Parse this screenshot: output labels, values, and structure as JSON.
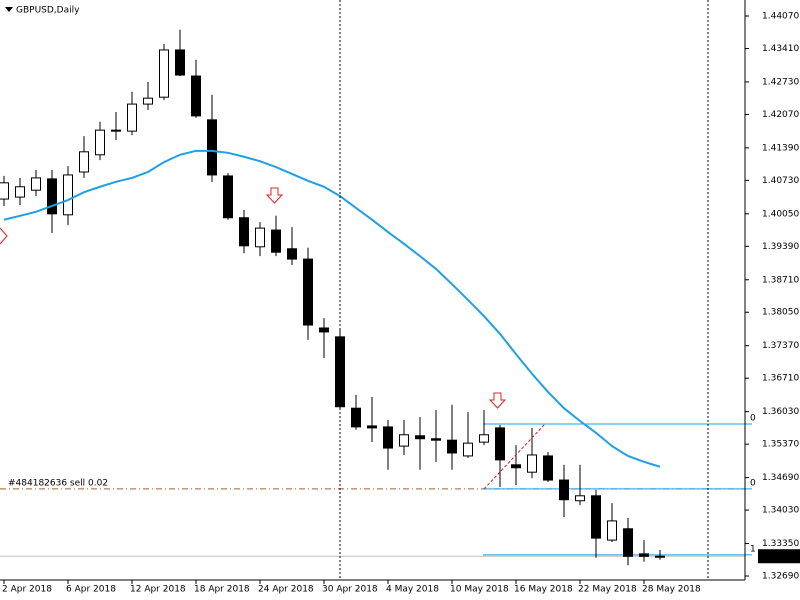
{
  "chart_data": {
    "type": "candlestick",
    "title": "GBPUSD,Daily",
    "categories": [
      "2 Apr 2018",
      null,
      null,
      null,
      "6 Apr 2018",
      null,
      null,
      null,
      "12 Apr 2018",
      null,
      null,
      null,
      "18 Apr 2018",
      null,
      null,
      null,
      "24 Apr 2018",
      null,
      null,
      null,
      "30 Apr 2018",
      null,
      null,
      null,
      "4 May 2018",
      null,
      null,
      null,
      "10 May 2018",
      null,
      null,
      null,
      "16 May 2018",
      null,
      null,
      null,
      "22 May 2018",
      null,
      null,
      null,
      "28 May 2018",
      null
    ],
    "open": [
      1.4035,
      1.4039,
      1.4053,
      1.4076,
      1.4003,
      1.409,
      1.4125,
      1.4173,
      1.4173,
      1.4228,
      1.4242,
      1.4338,
      1.4285,
      1.4196,
      1.4082,
      1.3997,
      1.3938,
      1.3972,
      1.3934,
      1.3913,
      1.3773,
      1.3755,
      1.361,
      1.3574,
      1.3572,
      1.3533,
      1.3554,
      1.3548,
      1.3545,
      1.3513,
      1.3541,
      1.357,
      1.3495,
      1.348,
      1.3513,
      1.3464,
      1.3422,
      1.3432,
      1.3342,
      1.3365,
      1.3314,
      1.3308
    ],
    "high": [
      1.4082,
      1.4078,
      1.4094,
      1.4094,
      1.4102,
      1.4163,
      1.4192,
      1.4212,
      1.4253,
      1.4273,
      1.435,
      1.4379,
      1.4318,
      1.4247,
      1.4088,
      1.4013,
      1.3988,
      1.4001,
      1.3978,
      1.3936,
      1.3793,
      1.3769,
      1.3637,
      1.3633,
      1.3586,
      1.3586,
      1.3592,
      1.3606,
      1.3617,
      1.3602,
      1.3606,
      1.3576,
      1.3535,
      1.357,
      1.3521,
      1.3495,
      1.3495,
      1.3444,
      1.3417,
      1.3387,
      1.3342,
      1.3322
    ],
    "low": [
      1.4021,
      1.4023,
      1.4041,
      1.3966,
      1.3982,
      1.4078,
      1.4114,
      1.4155,
      1.4165,
      1.4216,
      1.4236,
      1.4285,
      1.42,
      1.407,
      1.3993,
      1.3925,
      1.3919,
      1.3919,
      1.3901,
      1.3749,
      1.3712,
      1.3608,
      1.3566,
      1.3541,
      1.3485,
      1.3515,
      1.3485,
      1.3501,
      1.3485,
      1.3509,
      1.3535,
      1.345,
      1.3454,
      1.3468,
      1.346,
      1.3389,
      1.3413,
      1.3306,
      1.3338,
      1.3291,
      1.3298,
      1.3302
    ],
    "close": [
      1.4068,
      1.406,
      1.4078,
      1.4005,
      1.4084,
      1.4131,
      1.4175,
      1.4175,
      1.4228,
      1.424,
      1.4338,
      1.4287,
      1.4204,
      1.4084,
      1.3997,
      1.394,
      1.3976,
      1.3927,
      1.3913,
      1.3779,
      1.3765,
      1.3613,
      1.3572,
      1.357,
      1.3529,
      1.3556,
      1.3548,
      1.3545,
      1.3519,
      1.3539,
      1.3556,
      1.3505,
      1.3489,
      1.3515,
      1.3464,
      1.3424,
      1.3432,
      1.3346,
      1.3381,
      1.3309,
      1.3309,
      1.33092
    ],
    "up_color": "#ffffff",
    "down_color": "#000000",
    "ma": {
      "color": "#1ea0e6",
      "values": [
        1.3993,
        1.4001,
        1.4009,
        1.4021,
        1.4033,
        1.4049,
        1.406,
        1.407,
        1.4078,
        1.409,
        1.411,
        1.4125,
        1.4133,
        1.4133,
        1.4129,
        1.4121,
        1.4112,
        1.41,
        1.4086,
        1.4072,
        1.406,
        1.4041,
        1.4017,
        1.3993,
        1.3968,
        1.3944,
        1.3919,
        1.3893,
        1.3862,
        1.383,
        1.3797,
        1.3761,
        1.372,
        1.368,
        1.3643,
        1.361,
        1.3584,
        1.356,
        1.3533,
        1.3513,
        1.3501,
        1.3491
      ]
    },
    "last_price": 1.33092,
    "order": {
      "label": "#484182636 sell 0.02",
      "price": 1.3446
    },
    "levels": [
      {
        "price": 1.3578,
        "label": "0"
      },
      {
        "price": 1.3446,
        "label": "0"
      },
      {
        "price": 1.3312,
        "label": "1"
      }
    ],
    "ylim": [
      1.32609,
      1.44395
    ],
    "yticks": [
      {
        "value": 1.4407,
        "label": "1.44070"
      },
      {
        "value": 1.4341,
        "label": "1.43410"
      },
      {
        "value": 1.4273,
        "label": "1.42730"
      },
      {
        "value": 1.4207,
        "label": "1.42070"
      },
      {
        "value": 1.4139,
        "label": "1.41390"
      },
      {
        "value": 1.4073,
        "label": "1.40730"
      },
      {
        "value": 1.4005,
        "label": "1.40050"
      },
      {
        "value": 1.3939,
        "label": "1.39390"
      },
      {
        "value": 1.3871,
        "label": "1.38710"
      },
      {
        "value": 1.3805,
        "label": "1.38050"
      },
      {
        "value": 1.3737,
        "label": "1.37370"
      },
      {
        "value": 1.3671,
        "label": "1.36710"
      },
      {
        "value": 1.3603,
        "label": "1.36030"
      },
      {
        "value": 1.3537,
        "label": "1.35370"
      },
      {
        "value": 1.3469,
        "label": "1.34690"
      },
      {
        "value": 1.3403,
        "label": "1.34030"
      },
      {
        "value": 1.3335,
        "label": "1.33350"
      },
      {
        "value": 1.3269,
        "label": "1.32690"
      }
    ]
  }
}
